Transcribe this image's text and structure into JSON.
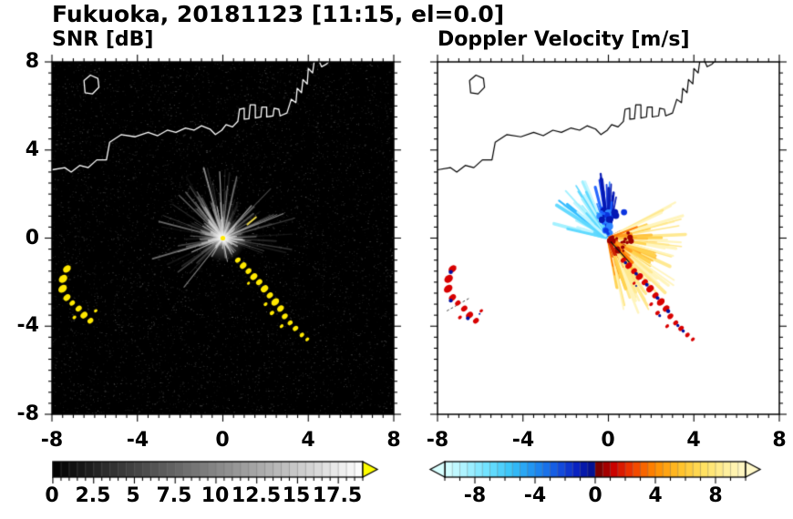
{
  "title": "Fukuoka, 20181123 [11:15, el=0.0]",
  "panels": {
    "snr": {
      "subtitle": "SNR [dB]"
    },
    "vel": {
      "subtitle": "Doppler Velocity [m/s]"
    }
  },
  "axis_labels": {
    "x": [
      "-8",
      "-4",
      "0",
      "4",
      "8"
    ],
    "y": [
      "8",
      "4",
      "0",
      "-4",
      "-8"
    ]
  },
  "colorbars": {
    "snr": {
      "labels": [
        "0",
        "2.5",
        "5",
        "7.5",
        "10",
        "12.5",
        "15",
        "17.5"
      ]
    },
    "vel": {
      "labels": [
        "-8",
        "-4",
        "0",
        "4",
        "8"
      ]
    }
  },
  "chart_data": {
    "type": "heatmap",
    "title": "Fukuoka, 20181123 [11:15, el=0.0]",
    "station": "Fukuoka",
    "date": "20181123",
    "time": "11:15",
    "elevation_deg": 0.0,
    "axis": {
      "xlim": [
        -8,
        8
      ],
      "ylim": [
        -8,
        8
      ],
      "xticks": [
        -8,
        -4,
        0,
        4,
        8
      ],
      "yticks": [
        -8,
        -4,
        0,
        4,
        8
      ],
      "minor_tick_step": 0.5
    },
    "radar_center": [
      0,
      0
    ],
    "panels": [
      {
        "name": "SNR",
        "units": "dB",
        "background": "#000000",
        "colorbar_range": [
          0,
          17.5
        ],
        "colorbar_ticks": [
          0,
          2.5,
          5,
          7.5,
          10,
          12.5,
          15,
          17.5
        ],
        "over_color": "#ffff00"
      },
      {
        "name": "Doppler Velocity",
        "units": "m/s",
        "background": "#ffffff",
        "colorbar_range": [
          -10,
          10
        ],
        "colorbar_ticks": [
          -8,
          -4,
          0,
          4,
          8
        ]
      }
    ],
    "coastline": [
      [
        [
          -8,
          3.1
        ],
        [
          -7.4,
          3.2
        ],
        [
          -7.1,
          3.0
        ],
        [
          -6.7,
          3.3
        ],
        [
          -6.3,
          3.2
        ],
        [
          -5.9,
          3.55
        ],
        [
          -5.45,
          3.55
        ],
        [
          -5.3,
          4.35
        ],
        [
          -4.75,
          4.7
        ],
        [
          -4.1,
          4.6
        ],
        [
          -3.5,
          4.8
        ],
        [
          -3.05,
          4.65
        ],
        [
          -2.6,
          4.9
        ],
        [
          -2.2,
          4.8
        ],
        [
          -1.75,
          5.0
        ],
        [
          -1.35,
          4.9
        ],
        [
          -1.0,
          5.1
        ],
        [
          -0.6,
          4.95
        ],
        [
          -0.35,
          4.7
        ],
        [
          -0.05,
          4.9
        ],
        [
          0.15,
          5.15
        ],
        [
          0.45,
          5.05
        ],
        [
          0.7,
          5.3
        ],
        [
          0.78,
          5.85
        ],
        [
          1.0,
          5.9
        ],
        [
          1.0,
          5.4
        ],
        [
          1.22,
          5.42
        ],
        [
          1.28,
          6.05
        ],
        [
          1.52,
          6.05
        ],
        [
          1.52,
          5.45
        ],
        [
          1.78,
          5.5
        ],
        [
          1.82,
          5.95
        ],
        [
          2.05,
          5.95
        ],
        [
          2.05,
          5.5
        ],
        [
          2.35,
          5.55
        ],
        [
          2.4,
          5.9
        ],
        [
          2.62,
          5.85
        ],
        [
          2.68,
          5.55
        ],
        [
          3.0,
          5.68
        ],
        [
          3.2,
          6.3
        ],
        [
          3.42,
          6.15
        ],
        [
          3.48,
          6.8
        ],
        [
          3.68,
          6.6
        ],
        [
          3.75,
          7.2
        ],
        [
          3.95,
          7.0
        ],
        [
          4.0,
          7.7
        ],
        [
          4.2,
          7.5
        ],
        [
          4.28,
          8.05
        ]
      ],
      [
        [
          -6.45,
          6.6
        ],
        [
          -6.1,
          6.55
        ],
        [
          -5.8,
          6.85
        ],
        [
          -5.85,
          7.25
        ],
        [
          -6.2,
          7.4
        ],
        [
          -6.5,
          7.15
        ],
        [
          -6.45,
          6.6
        ]
      ],
      [
        [
          4.5,
          8.05
        ],
        [
          4.62,
          7.78
        ],
        [
          4.85,
          7.9
        ],
        [
          5.0,
          8.05
        ]
      ]
    ],
    "features": {
      "snr_color": "#ffe800",
      "streak_color": "#ffe84a",
      "vel_color": "#d80000",
      "vel_speck_color": "#0010a0",
      "left_arc": [
        [
          -7.3,
          -1.4,
          0.2
        ],
        [
          -7.48,
          -1.85,
          0.22
        ],
        [
          -7.5,
          -2.3,
          0.22
        ],
        [
          -7.3,
          -2.7,
          0.18
        ],
        [
          -7.05,
          -2.95,
          0.14
        ],
        [
          -6.75,
          -3.2,
          0.16
        ],
        [
          -6.5,
          -3.5,
          0.18
        ],
        [
          -6.2,
          -3.75,
          0.15
        ],
        [
          -6.95,
          -3.6,
          0.1
        ],
        [
          -5.95,
          -3.3,
          0.09
        ]
      ],
      "ship_chain": [
        [
          0.7,
          -1.0,
          0.14
        ],
        [
          0.95,
          -1.25,
          0.17
        ],
        [
          1.2,
          -1.5,
          0.15
        ],
        [
          1.45,
          -1.75,
          0.18
        ],
        [
          1.7,
          -2.0,
          0.16
        ],
        [
          1.95,
          -2.3,
          0.19
        ],
        [
          2.2,
          -2.6,
          0.16
        ],
        [
          2.45,
          -2.9,
          0.2
        ],
        [
          2.7,
          -3.2,
          0.17
        ],
        [
          2.0,
          -3.0,
          0.1
        ],
        [
          2.3,
          -3.4,
          0.12
        ],
        [
          2.9,
          -3.55,
          0.15
        ],
        [
          3.15,
          -3.85,
          0.13
        ],
        [
          2.75,
          -4.0,
          0.1
        ],
        [
          3.4,
          -4.1,
          0.14
        ],
        [
          3.7,
          -4.4,
          0.12
        ],
        [
          1.2,
          -2.05,
          0.08
        ],
        [
          3.95,
          -4.6,
          0.1
        ]
      ]
    },
    "velocity": {
      "cold_light": [
        "#9ef0ff",
        "#5cd8ff",
        "#2cb8ff",
        "#c2f6ff"
      ],
      "cold_dark": [
        "#1b60ff",
        "#0b34e0",
        "#0518b4",
        "#2e86ff"
      ],
      "warm_near": [
        "#cc1e00",
        "#e83800"
      ],
      "warm_mid": [
        "#ff7a00",
        "#ff9a1a"
      ],
      "warm_far": [
        "#ffc23c",
        "#ffd24e"
      ],
      "warm_pale": [
        "#ffe88c",
        "#fff4bc"
      ],
      "dark_red": "#9c0000",
      "negative_sector_deg": [
        78,
        168
      ],
      "positive_sector_deg": [
        -80,
        28
      ],
      "max_radius": 3.6
    },
    "colorbar_configs": {
      "snr": {
        "x0": 1,
        "body_width": 340,
        "arrow_left": false,
        "arrow_right": true,
        "gray": true,
        "over_color": "#ffff00",
        "range": [
          0,
          19
        ],
        "major_ticks": [
          0,
          2.5,
          5,
          7.5,
          10,
          12.5,
          15,
          17.5
        ],
        "minor_step": 0.5,
        "segments": 38
      },
      "vel": {
        "x0": 18,
        "body_width": 330,
        "arrow_left": true,
        "arrow_right": true,
        "gray": false,
        "under_color": "#d8ffff",
        "over_color": "#fff8c8",
        "range": [
          -10,
          10
        ],
        "major_ticks": [
          -8,
          -4,
          0,
          4,
          8
        ],
        "minor_step": 1,
        "segments": 40,
        "stops": [
          [
            0,
            "#d8ffff"
          ],
          [
            0.06,
            "#b0f4ff"
          ],
          [
            0.14,
            "#70e2ff"
          ],
          [
            0.22,
            "#38c4f8"
          ],
          [
            0.3,
            "#1e8ef0"
          ],
          [
            0.38,
            "#1450e0"
          ],
          [
            0.44,
            "#0820c0"
          ],
          [
            0.49,
            "#041090"
          ],
          [
            0.505,
            "#700000"
          ],
          [
            0.56,
            "#c80000"
          ],
          [
            0.62,
            "#f03800"
          ],
          [
            0.7,
            "#ff8c00"
          ],
          [
            0.78,
            "#ffc028"
          ],
          [
            0.86,
            "#ffe060"
          ],
          [
            0.94,
            "#fff0a0"
          ],
          [
            1,
            "#fff8c8"
          ]
        ]
      }
    }
  }
}
